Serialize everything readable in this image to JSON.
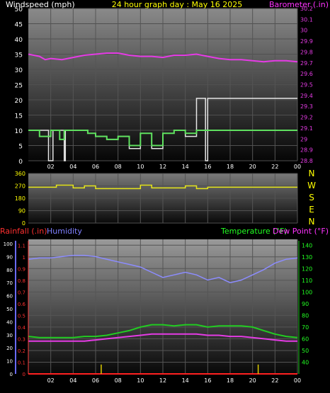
{
  "header": {
    "windspeed_label": "Windspeed (mph)",
    "title": "24 hour graph day : May 16 2025",
    "barometer_label": "Barometer (.in)"
  },
  "middle": {
    "directions": [
      "N",
      "W",
      "S",
      "E",
      "N"
    ]
  },
  "bottom_header": {
    "rainfall_label": "Rainfall (.in)",
    "humidity_label": "Humidity",
    "temperature_label": "Temperature (°F)",
    "dewpoint_label": "Dew Point (°F)"
  },
  "colors": {
    "windspeed": "#5fe05f",
    "gust": "#e6e6e6",
    "barometer": "#e53be5",
    "direction": "#e6e61a",
    "humidity": "#8c8cff",
    "temperature": "#22cc22",
    "dewpoint": "#e53be5",
    "rain": "#ff2020",
    "rain_rate": "#ddcc00",
    "title_yellow": "#ffff00",
    "label_blue": "#8080ff",
    "label_green": "#22ff22",
    "label_magenta": "#ff33ff",
    "label_red": "#ff3030"
  },
  "chart_data": [
    {
      "type": "line",
      "x_ticks": [
        "02",
        "04",
        "06",
        "08",
        "10",
        "12",
        "14",
        "16",
        "18",
        "20",
        "22",
        "00"
      ],
      "y_left_ticks": [
        "0",
        "5",
        "10",
        "15",
        "20",
        "25",
        "30",
        "35",
        "40",
        "45",
        "50"
      ],
      "y_left_range": [
        0,
        50
      ],
      "y_right_ticks": [
        "28.8",
        "28.9",
        "29",
        "29.1",
        "29.2",
        "29.3",
        "29.4",
        "29.5",
        "29.6",
        "29.7",
        "29.8",
        "29.9",
        "30",
        "30.1",
        "30.2"
      ],
      "y_right_range": [
        28.8,
        30.2
      ],
      "x_range": [
        0,
        24
      ],
      "series": [
        {
          "name": "Windspeed (mph)",
          "points": [
            [
              0,
              10
            ],
            [
              1,
              10
            ],
            [
              1,
              8
            ],
            [
              2,
              8
            ],
            [
              2,
              10
            ],
            [
              2.8,
              10
            ],
            [
              2.8,
              7
            ],
            [
              3.2,
              7
            ],
            [
              3.2,
              10
            ],
            [
              5.3,
              10
            ],
            [
              5.3,
              9
            ],
            [
              6,
              9
            ],
            [
              6,
              8
            ],
            [
              7,
              8
            ],
            [
              7,
              7
            ],
            [
              8,
              7
            ],
            [
              8,
              8
            ],
            [
              9,
              8
            ],
            [
              9,
              5
            ],
            [
              10,
              5
            ],
            [
              10,
              9
            ],
            [
              11,
              9
            ],
            [
              11,
              5
            ],
            [
              12,
              5
            ],
            [
              12,
              9
            ],
            [
              13,
              9
            ],
            [
              13,
              10
            ],
            [
              14,
              10
            ],
            [
              14,
              9
            ],
            [
              15,
              9
            ],
            [
              15,
              10
            ],
            [
              16,
              10
            ],
            [
              24,
              10
            ]
          ]
        },
        {
          "name": "Gust",
          "points": [
            [
              0,
              10
            ],
            [
              1.8,
              10
            ],
            [
              1.8,
              0
            ],
            [
              2.2,
              0
            ],
            [
              2.2,
              10
            ],
            [
              3.2,
              10
            ],
            [
              3.2,
              0
            ],
            [
              3.3,
              0
            ],
            [
              3.3,
              10
            ],
            [
              5.3,
              10
            ],
            [
              5.3,
              9
            ],
            [
              6,
              9
            ],
            [
              6,
              8
            ],
            [
              7,
              8
            ],
            [
              7,
              7
            ],
            [
              8,
              7
            ],
            [
              8,
              8
            ],
            [
              9,
              8
            ],
            [
              9,
              4
            ],
            [
              10,
              4
            ],
            [
              10,
              9
            ],
            [
              11,
              9
            ],
            [
              11,
              4
            ],
            [
              12,
              4
            ],
            [
              12,
              9
            ],
            [
              13,
              9
            ],
            [
              13,
              10
            ],
            [
              14,
              10
            ],
            [
              14,
              8
            ],
            [
              15,
              8
            ],
            [
              15,
              20.5
            ],
            [
              15.8,
              20.5
            ],
            [
              15.8,
              0
            ],
            [
              16,
              0
            ],
            [
              16,
              20.5
            ],
            [
              24,
              20.5
            ]
          ]
        },
        {
          "name": "Barometer (.in)",
          "points": [
            [
              0,
              29.78
            ],
            [
              1,
              29.76
            ],
            [
              1.5,
              29.73
            ],
            [
              2,
              29.74
            ],
            [
              3,
              29.73
            ],
            [
              4,
              29.75
            ],
            [
              5,
              29.77
            ],
            [
              6,
              29.78
            ],
            [
              7,
              29.79
            ],
            [
              8,
              29.79
            ],
            [
              9,
              29.77
            ],
            [
              10,
              29.76
            ],
            [
              11,
              29.76
            ],
            [
              12,
              29.75
            ],
            [
              13,
              29.77
            ],
            [
              14,
              29.77
            ],
            [
              15,
              29.78
            ],
            [
              16,
              29.76
            ],
            [
              17,
              29.74
            ],
            [
              18,
              29.73
            ],
            [
              19,
              29.73
            ],
            [
              20,
              29.72
            ],
            [
              21,
              29.71
            ],
            [
              22,
              29.72
            ],
            [
              23,
              29.72
            ],
            [
              24,
              29.71
            ]
          ]
        }
      ]
    },
    {
      "type": "line",
      "y_left_ticks": [
        "0",
        "90",
        "180",
        "270",
        "360"
      ],
      "y_left_range": [
        0,
        360
      ],
      "x_range": [
        0,
        24
      ],
      "series": [
        {
          "name": "Wind Direction",
          "points": [
            [
              0,
              260
            ],
            [
              2.5,
              260
            ],
            [
              2.5,
              275
            ],
            [
              4,
              275
            ],
            [
              4,
              255
            ],
            [
              5,
              255
            ],
            [
              5,
              270
            ],
            [
              6,
              270
            ],
            [
              6,
              250
            ],
            [
              10,
              250
            ],
            [
              10,
              275
            ],
            [
              11,
              275
            ],
            [
              11,
              255
            ],
            [
              14,
              255
            ],
            [
              14,
              270
            ],
            [
              15,
              270
            ],
            [
              15,
              250
            ],
            [
              16,
              250
            ],
            [
              16,
              260
            ],
            [
              24,
              260
            ]
          ]
        }
      ]
    },
    {
      "type": "line",
      "x_ticks": [
        "02",
        "04",
        "06",
        "08",
        "10",
        "12",
        "14",
        "16",
        "18",
        "20",
        "22",
        "00"
      ],
      "y_humidity_ticks": [
        "0",
        "10",
        "20",
        "30",
        "40",
        "50",
        "60",
        "70",
        "80",
        "90",
        "100"
      ],
      "y_rain_ticks": [
        "0",
        "0.1",
        "0.2",
        "0.3",
        "0.4",
        "0.5",
        "0.6",
        "0.7",
        "0.8",
        "0.9",
        "1",
        "1.1"
      ],
      "y_rain_range": [
        0,
        1.15
      ],
      "y_right_ticks": [
        "40",
        "50",
        "60",
        "70",
        "80",
        "90",
        "100",
        "110",
        "120",
        "130",
        "140"
      ],
      "y_right_range": [
        30,
        145
      ],
      "x_range": [
        0,
        24
      ],
      "series": [
        {
          "name": "Humidity",
          "points": [
            [
              0,
              88
            ],
            [
              1,
              89
            ],
            [
              2,
              89
            ],
            [
              3,
              90
            ],
            [
              4,
              91
            ],
            [
              5,
              91
            ],
            [
              6,
              90
            ],
            [
              7,
              88
            ],
            [
              8,
              86
            ],
            [
              9,
              84
            ],
            [
              10,
              82
            ],
            [
              11,
              78
            ],
            [
              12,
              74
            ],
            [
              13,
              76
            ],
            [
              14,
              78
            ],
            [
              15,
              76
            ],
            [
              16,
              72
            ],
            [
              17,
              74
            ],
            [
              18,
              70
            ],
            [
              19,
              72
            ],
            [
              20,
              76
            ],
            [
              21,
              80
            ],
            [
              22,
              85
            ],
            [
              23,
              88
            ],
            [
              24,
              89
            ]
          ]
        },
        {
          "name": "Temperature (°F)",
          "points": [
            [
              0,
              62
            ],
            [
              1,
              61
            ],
            [
              2,
              61
            ],
            [
              3,
              61
            ],
            [
              4,
              61
            ],
            [
              5,
              62
            ],
            [
              6,
              62
            ],
            [
              7,
              63
            ],
            [
              8,
              65
            ],
            [
              9,
              67
            ],
            [
              10,
              70
            ],
            [
              11,
              72
            ],
            [
              12,
              72
            ],
            [
              13,
              71
            ],
            [
              14,
              72
            ],
            [
              15,
              72
            ],
            [
              16,
              70
            ],
            [
              17,
              71
            ],
            [
              18,
              71
            ],
            [
              19,
              71
            ],
            [
              20,
              70
            ],
            [
              21,
              67
            ],
            [
              22,
              64
            ],
            [
              23,
              62
            ],
            [
              24,
              61
            ]
          ]
        },
        {
          "name": "Dew Point (°F)",
          "points": [
            [
              0,
              58
            ],
            [
              1,
              58
            ],
            [
              2,
              58
            ],
            [
              3,
              58
            ],
            [
              4,
              58
            ],
            [
              5,
              58
            ],
            [
              6,
              59
            ],
            [
              7,
              60
            ],
            [
              8,
              61
            ],
            [
              9,
              62
            ],
            [
              10,
              63
            ],
            [
              11,
              64
            ],
            [
              12,
              64
            ],
            [
              13,
              64
            ],
            [
              14,
              64
            ],
            [
              15,
              64
            ],
            [
              16,
              63
            ],
            [
              17,
              63
            ],
            [
              18,
              62
            ],
            [
              19,
              62
            ],
            [
              20,
              61
            ],
            [
              21,
              60
            ],
            [
              22,
              59
            ],
            [
              23,
              58
            ],
            [
              24,
              58
            ]
          ]
        },
        {
          "name": "Rainfall (.in)",
          "points": [
            [
              0,
              0
            ],
            [
              24,
              0
            ]
          ]
        },
        {
          "name": "Rain Rate",
          "bars": [
            [
              6.5,
              0.08
            ],
            [
              20.5,
              0.08
            ]
          ]
        }
      ]
    }
  ]
}
